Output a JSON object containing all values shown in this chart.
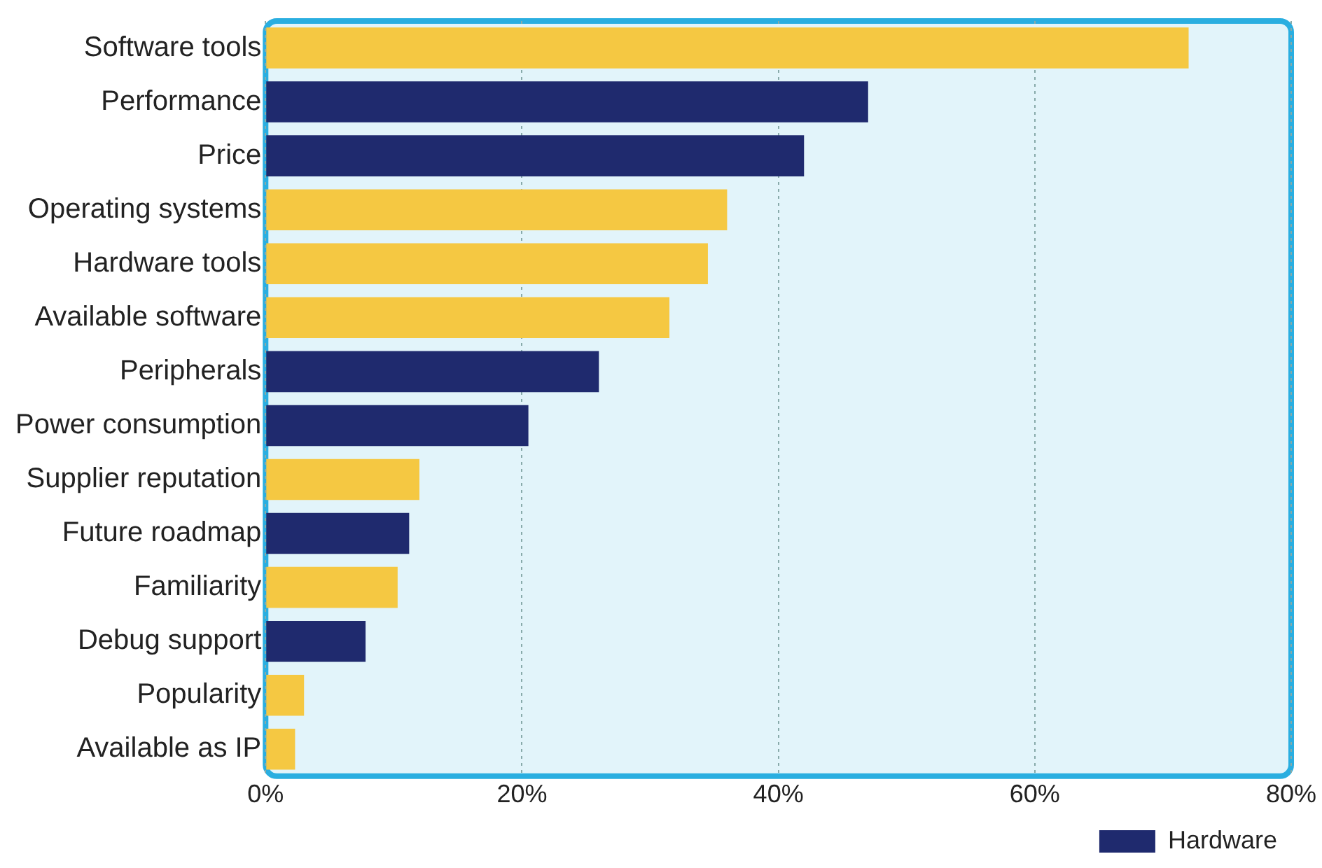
{
  "chart_data": {
    "type": "bar",
    "orientation": "horizontal",
    "categories": [
      "Software tools",
      "Performance",
      "Price",
      "Operating systems",
      "Hardware tools",
      "Available software",
      "Peripherals",
      "Power consumption",
      "Supplier reputation",
      "Future roadmap",
      "Familiarity",
      "Debug support",
      "Popularity",
      "Available as IP"
    ],
    "series": [
      {
        "name": "Hardware",
        "color": "#1f2a6e",
        "values": [
          null,
          47,
          42,
          null,
          null,
          null,
          26,
          20.5,
          null,
          11.2,
          null,
          7.8,
          null,
          null
        ]
      },
      {
        "color": "#f5c842",
        "values": [
          72,
          null,
          null,
          36,
          34.5,
          31.5,
          null,
          null,
          12,
          null,
          10.3,
          null,
          3,
          2.3
        ]
      }
    ],
    "xlim": [
      0,
      80
    ],
    "xticks": [
      {
        "value": 0,
        "label": "0%"
      },
      {
        "value": 20,
        "label": "20%"
      },
      {
        "value": 40,
        "label": "40%"
      },
      {
        "value": 60,
        "label": "60%"
      },
      {
        "value": 80,
        "label": "80%"
      }
    ],
    "grid": "x",
    "legend": "bottom right"
  }
}
